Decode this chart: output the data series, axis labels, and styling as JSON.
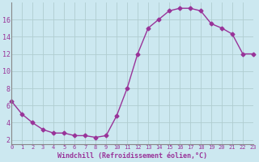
{
  "x": [
    0,
    1,
    2,
    3,
    4,
    5,
    6,
    7,
    8,
    9,
    10,
    11,
    12,
    13,
    14,
    15,
    16,
    17,
    18,
    19,
    20,
    21,
    22,
    23
  ],
  "y": [
    6.5,
    5.0,
    4.0,
    3.2,
    2.8,
    2.8,
    2.5,
    2.5,
    2.3,
    2.5,
    4.8,
    8.0,
    12.0,
    15.0,
    16.0,
    17.0,
    17.3,
    17.3,
    17.0,
    15.5,
    15.0,
    14.3,
    12.0,
    12.0
  ],
  "xlim": [
    0,
    23
  ],
  "ylim": [
    1.5,
    18.0
  ],
  "yticks": [
    2,
    4,
    6,
    8,
    10,
    12,
    14,
    16
  ],
  "xticks": [
    0,
    1,
    2,
    3,
    4,
    5,
    6,
    7,
    8,
    9,
    10,
    11,
    12,
    13,
    14,
    15,
    16,
    17,
    18,
    19,
    20,
    21,
    22,
    23
  ],
  "xlabel": "Windchill (Refroidissement éolien,°C)",
  "line_color": "#993399",
  "marker": "D",
  "marker_size": 2.5,
  "background_color": "#cce8f0",
  "grid_color": "#b0cdd0",
  "spine_color": "#888888"
}
